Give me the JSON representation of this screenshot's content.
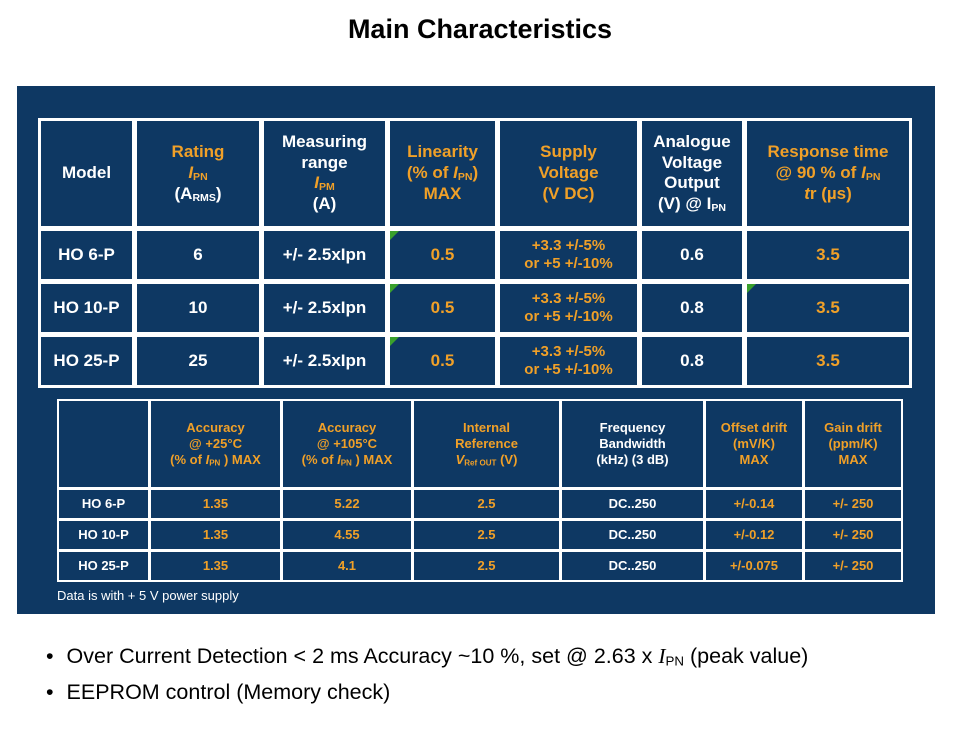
{
  "title": "Main Characteristics",
  "footnote": "Data is with + 5 V power supply",
  "bullet_glyph": "•",
  "colors": {
    "panel_navy": "#0e3863",
    "accent_orange": "#f0a028",
    "marker_green": "#3aa02c",
    "text_white": "#ffffff"
  },
  "bullets": [
    {
      "segs": [
        {
          "t": "Over Current Detection < 2 ms Accuracy ~10 %, set @ 2.63 x "
        },
        {
          "t": "I",
          "i": true,
          "serif": true
        },
        {
          "t": "PN",
          "sub": true
        },
        {
          "t": " (peak value)"
        }
      ]
    },
    {
      "segs": [
        {
          "t": "EEPROM control (Memory check)"
        }
      ]
    }
  ],
  "table1": {
    "header": [
      {
        "c": "w",
        "lines": [
          [
            "Model"
          ]
        ]
      },
      {
        "c": "o",
        "lines": [
          [
            "Rating"
          ],
          [
            {
              "t": "I",
              "i": true
            },
            {
              "t": "PN",
              "sub": true
            }
          ],
          [
            {
              "t": "(A",
              "c": "w"
            },
            {
              "t": "RMS",
              "sub": true,
              "c": "w"
            },
            {
              "t": ")",
              "c": "w"
            }
          ]
        ]
      },
      {
        "c": "w",
        "lines": [
          [
            "Measuring"
          ],
          [
            "range"
          ],
          [
            {
              "t": "I",
              "i": true,
              "c": "o"
            },
            {
              "t": "PM",
              "sub": true,
              "c": "o"
            }
          ],
          [
            "(A)"
          ]
        ]
      },
      {
        "c": "o",
        "lines": [
          [
            "Linearity"
          ],
          [
            {
              "t": "(% of "
            },
            {
              "t": "I",
              "i": true
            },
            {
              "t": "PN",
              "sub": true
            },
            {
              "t": ")"
            }
          ],
          [
            "MAX"
          ]
        ]
      },
      {
        "c": "o",
        "lines": [
          [
            "Supply"
          ],
          [
            "Voltage"
          ],
          [
            "(V DC)"
          ]
        ]
      },
      {
        "c": "w",
        "lines": [
          [
            "Analogue"
          ],
          [
            "Voltage"
          ],
          [
            "Output"
          ],
          [
            {
              "t": "(V) @ I"
            },
            {
              "t": "PN",
              "sub": true
            }
          ]
        ]
      },
      {
        "c": "o",
        "lines": [
          [
            "Response time"
          ],
          [
            {
              "t": "@ 90 % of "
            },
            {
              "t": "I",
              "i": true
            },
            {
              "t": "PN",
              "sub": true
            }
          ],
          [
            {
              "t": "t",
              "i": true
            },
            {
              "t": "r (µs)"
            }
          ]
        ]
      }
    ],
    "rows": [
      [
        {
          "c": "w",
          "text": "HO 6-P"
        },
        {
          "c": "w",
          "text": "6"
        },
        {
          "c": "w",
          "text": "+/- 2.5xIpn"
        },
        {
          "c": "o",
          "text": "0.5",
          "m": true
        },
        {
          "c": "o",
          "s": true,
          "lines": [
            [
              "+3.3 +/-5%"
            ],
            [
              "or +5 +/-10%"
            ]
          ]
        },
        {
          "c": "w",
          "text": "0.6"
        },
        {
          "c": "o",
          "text": "3.5"
        }
      ],
      [
        {
          "c": "w",
          "text": "HO 10-P"
        },
        {
          "c": "w",
          "text": "10"
        },
        {
          "c": "w",
          "text": "+/- 2.5xIpn"
        },
        {
          "c": "o",
          "text": "0.5",
          "m": true
        },
        {
          "c": "o",
          "s": true,
          "lines": [
            [
              "+3.3 +/-5%"
            ],
            [
              "or +5 +/-10%"
            ]
          ]
        },
        {
          "c": "w",
          "text": "0.8"
        },
        {
          "c": "o",
          "text": "3.5",
          "m": true
        }
      ],
      [
        {
          "c": "w",
          "text": "HO 25-P"
        },
        {
          "c": "w",
          "text": "25"
        },
        {
          "c": "w",
          "text": "+/- 2.5xIpn"
        },
        {
          "c": "o",
          "text": "0.5",
          "m": true
        },
        {
          "c": "o",
          "s": true,
          "lines": [
            [
              "+3.3 +/-5%"
            ],
            [
              "or +5 +/-10%"
            ]
          ]
        },
        {
          "c": "w",
          "text": "0.8"
        },
        {
          "c": "o",
          "text": "3.5"
        }
      ]
    ]
  },
  "table2": {
    "header": [
      {
        "c": "w",
        "lines": []
      },
      {
        "c": "o",
        "lines": [
          [
            "Accuracy"
          ],
          [
            "@ +25°C"
          ],
          [
            {
              "t": "(% of "
            },
            {
              "t": "I",
              "i": true
            },
            {
              "t": "PN",
              "sub": true
            },
            {
              "t": " ) MAX"
            }
          ]
        ]
      },
      {
        "c": "o",
        "lines": [
          [
            "Accuracy"
          ],
          [
            "@ +105°C"
          ],
          [
            {
              "t": "(% of "
            },
            {
              "t": "I",
              "i": true
            },
            {
              "t": "PN",
              "sub": true
            },
            {
              "t": " ) MAX"
            }
          ]
        ]
      },
      {
        "c": "o",
        "lines": [
          [
            "Internal"
          ],
          [
            "Reference"
          ],
          [
            {
              "t": "V",
              "i": true
            },
            {
              "t": "Ref OUT",
              "sub": true
            },
            {
              "t": " (V)"
            }
          ]
        ]
      },
      {
        "c": "w",
        "lines": [
          [
            "Frequency"
          ],
          [
            "Bandwidth"
          ],
          [
            "(kHz) (3 dB)"
          ]
        ]
      },
      {
        "c": "o",
        "lines": [
          [
            "Offset drift"
          ],
          [
            "(mV/K)"
          ],
          [
            "MAX"
          ]
        ]
      },
      {
        "c": "o",
        "lines": [
          [
            "Gain drift"
          ],
          [
            "(ppm/K)"
          ],
          [
            "MAX"
          ]
        ]
      }
    ],
    "rows": [
      [
        {
          "c": "w",
          "text": "HO 6-P"
        },
        {
          "c": "o",
          "text": "1.35"
        },
        {
          "c": "o",
          "text": "5.22"
        },
        {
          "c": "o",
          "text": "2.5"
        },
        {
          "c": "w",
          "text": "DC..250"
        },
        {
          "c": "o",
          "text": "+/-0.14"
        },
        {
          "c": "o",
          "text": "+/- 250"
        }
      ],
      [
        {
          "c": "w",
          "text": "HO 10-P"
        },
        {
          "c": "o",
          "text": "1.35"
        },
        {
          "c": "o",
          "text": "4.55"
        },
        {
          "c": "o",
          "text": "2.5"
        },
        {
          "c": "w",
          "text": "DC..250"
        },
        {
          "c": "o",
          "text": "+/-0.12"
        },
        {
          "c": "o",
          "text": "+/- 250"
        }
      ],
      [
        {
          "c": "w",
          "text": "HO 25-P"
        },
        {
          "c": "o",
          "text": "1.35"
        },
        {
          "c": "o",
          "text": "4.1"
        },
        {
          "c": "o",
          "text": "2.5"
        },
        {
          "c": "w",
          "text": "DC..250"
        },
        {
          "c": "o",
          "text": "+/-0.075"
        },
        {
          "c": "o",
          "text": "+/- 250"
        }
      ]
    ]
  }
}
